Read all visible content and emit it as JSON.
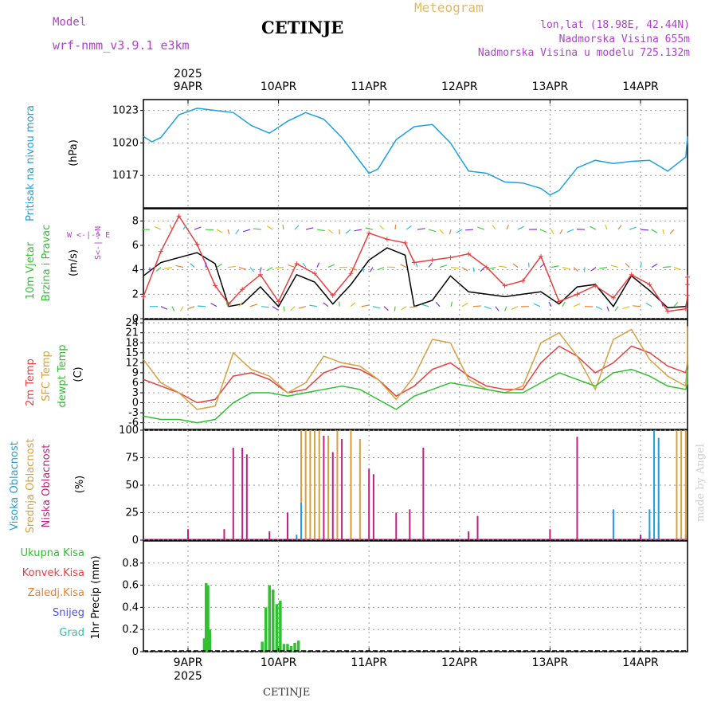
{
  "header": {
    "model_label": "Model",
    "model_name": "wrf-nmm_v3.9.1 e3km",
    "station": "CETINJE",
    "title": "Meteogram",
    "lonlat": "lon,lat (18.98E, 42.44N)",
    "altitude": "Nadmorska Visina 655m",
    "model_altitude": "Nadmorska Visina u modelu 725.132m",
    "footer": "CETINJE",
    "signature": "made by Angel"
  },
  "colors": {
    "pressure": "#1ea0e0",
    "wind_speed": "#000000",
    "wind_gust": "#e84040",
    "temp2m": "#e84040",
    "sfc_temp": "#d8a040",
    "dewpt": "#30c030",
    "high_cloud": "#1ea0e0",
    "mid_cloud": "#d8a040",
    "low_cloud": "#c02080",
    "total_precip": "#30c030",
    "conv_precip": "#e84040",
    "grid": "#999999"
  },
  "chart_data": [
    {
      "type": "line",
      "panel": "pressure",
      "title": "Pritisak na nivou mora",
      "ylabel": "(hPa)",
      "ylim": [
        1014,
        1024
      ],
      "yticks": [
        1017,
        1020,
        1023
      ],
      "x_top_labels": [
        "9APR",
        "10APR",
        "11APR",
        "12APR",
        "13APR",
        "14APR"
      ],
      "year_label": "2025",
      "series": [
        {
          "name": "MSLP",
          "x": [
            0,
            0.1,
            0.2,
            0.4,
            0.6,
            0.8,
            1.0,
            1.2,
            1.4,
            1.6,
            1.8,
            2.0,
            2.2,
            2.4,
            2.5,
            2.6,
            2.8,
            3.0,
            3.2,
            3.4,
            3.6,
            3.8,
            4.0,
            4.2,
            4.4,
            4.5,
            4.6,
            4.8,
            5.0,
            5.2,
            5.4,
            5.6,
            5.8,
            6.0,
            6.2,
            6.5
          ],
          "values": [
            1020.6,
            1020.1,
            1020.5,
            1022.6,
            1023.2,
            1023.0,
            1022.8,
            1021.6,
            1020.9,
            1022.0,
            1022.8,
            1022.2,
            1020.5,
            1018.3,
            1017.2,
            1017.6,
            1020.3,
            1021.5,
            1021.7,
            1020.0,
            1017.4,
            1017.2,
            1016.4,
            1016.3,
            1015.8,
            1015.2,
            1015.6,
            1017.7,
            1018.4,
            1018.1,
            1018.3,
            1018.4,
            1017.4,
            1018.7,
            1020.6,
            1020.0
          ]
        }
      ]
    },
    {
      "type": "line",
      "panel": "wind",
      "title": "10m Vjetar Brzina i Pravac",
      "ylabel": "(m/s)",
      "ylim": [
        0,
        9
      ],
      "yticks": [
        0,
        2,
        4,
        6,
        8
      ],
      "compass_label": "W <-|-> E",
      "series": [
        {
          "name": "Brzina",
          "x": [
            0,
            0.2,
            0.4,
            0.6,
            0.8,
            0.95,
            1.1,
            1.3,
            1.5,
            1.7,
            1.9,
            2.1,
            2.3,
            2.5,
            2.7,
            2.9,
            3.0,
            3.2,
            3.4,
            3.6,
            3.8,
            4.0,
            4.2,
            4.4,
            4.6,
            4.8,
            5.0,
            5.2,
            5.4,
            5.6,
            5.8,
            6.0,
            6.2,
            6.4,
            6.5
          ],
          "values": [
            3.5,
            4.6,
            5.0,
            5.4,
            4.5,
            1.0,
            1.2,
            2.6,
            1.0,
            3.6,
            3.0,
            1.2,
            2.8,
            4.8,
            5.8,
            5.2,
            1.0,
            1.5,
            3.5,
            2.2,
            2.0,
            1.8,
            2.0,
            2.2,
            1.2,
            2.6,
            2.8,
            1.0,
            3.5,
            2.3,
            0.9,
            1.0,
            1.6,
            2.5,
            3.2
          ]
        },
        {
          "name": "Udari",
          "x": [
            0,
            0.2,
            0.4,
            0.6,
            0.8,
            0.95,
            1.1,
            1.3,
            1.5,
            1.7,
            1.9,
            2.1,
            2.3,
            2.5,
            2.7,
            2.9,
            3.0,
            3.2,
            3.4,
            3.6,
            3.8,
            4.0,
            4.2,
            4.4,
            4.6,
            4.8,
            5.0,
            5.2,
            5.4,
            5.6,
            5.8,
            6.0,
            6.2,
            6.4,
            6.5
          ],
          "values": [
            1.8,
            5.5,
            8.4,
            6.1,
            2.7,
            1.2,
            2.4,
            3.6,
            1.4,
            4.5,
            3.7,
            1.9,
            3.7,
            7.0,
            6.5,
            6.2,
            4.6,
            4.8,
            5.0,
            5.3,
            4.2,
            2.7,
            3.1,
            5.1,
            1.4,
            2.0,
            2.7,
            1.7,
            3.6,
            2.8,
            0.6,
            0.8,
            1.9,
            2.8,
            3.4
          ]
        }
      ]
    },
    {
      "type": "line",
      "panel": "temperature",
      "title": "2m Temp / SFC Temp / dewpt Temp",
      "ylabel": "(C)",
      "ylim": [
        -8,
        25
      ],
      "yticks": [
        -6,
        -3,
        0,
        3,
        6,
        9,
        12,
        15,
        18,
        21,
        24
      ],
      "series": [
        {
          "name": "2m Temp",
          "x": [
            0,
            0.2,
            0.4,
            0.6,
            0.8,
            1.0,
            1.2,
            1.4,
            1.6,
            1.8,
            2.0,
            2.2,
            2.4,
            2.6,
            2.8,
            3.0,
            3.2,
            3.4,
            3.6,
            3.8,
            4.0,
            4.2,
            4.4,
            4.6,
            4.8,
            5.0,
            5.2,
            5.4,
            5.6,
            5.8,
            6.0,
            6.2,
            6.4,
            6.5
          ],
          "values": [
            7,
            5,
            3,
            0,
            1,
            8,
            9,
            7,
            3,
            4,
            9,
            11,
            10,
            7,
            2,
            5,
            10,
            12,
            8,
            5,
            4,
            4,
            12,
            17,
            14,
            9,
            12,
            17,
            15,
            11,
            9,
            12,
            16,
            17
          ]
        },
        {
          "name": "SFC Temp",
          "x": [
            0,
            0.2,
            0.4,
            0.6,
            0.8,
            1.0,
            1.2,
            1.4,
            1.6,
            1.8,
            2.0,
            2.2,
            2.4,
            2.6,
            2.8,
            3.0,
            3.2,
            3.4,
            3.6,
            3.8,
            4.0,
            4.2,
            4.4,
            4.6,
            4.8,
            5.0,
            5.2,
            5.4,
            5.6,
            5.8,
            6.0,
            6.2,
            6.4,
            6.5
          ],
          "values": [
            13,
            6,
            3,
            -2,
            -1,
            15,
            10,
            8,
            3,
            6,
            14,
            12,
            11,
            7,
            1,
            8,
            19,
            18,
            7,
            4,
            3,
            5,
            18,
            21,
            14,
            4,
            19,
            22,
            13,
            8,
            5,
            14,
            23,
            23
          ]
        },
        {
          "name": "dewpt Temp",
          "x": [
            0,
            0.2,
            0.4,
            0.6,
            0.8,
            1.0,
            1.2,
            1.4,
            1.6,
            1.8,
            2.0,
            2.2,
            2.4,
            2.6,
            2.8,
            3.0,
            3.2,
            3.4,
            3.6,
            3.8,
            4.0,
            4.2,
            4.4,
            4.6,
            4.8,
            5.0,
            5.2,
            5.4,
            5.6,
            5.8,
            6.0,
            6.2,
            6.4,
            6.5
          ],
          "values": [
            -4,
            -5,
            -5,
            -6,
            -5,
            0,
            3,
            3,
            2,
            3,
            4,
            5,
            4,
            1,
            -2,
            2,
            4,
            6,
            5,
            4,
            3,
            3,
            6,
            9,
            7,
            5,
            9,
            10,
            8,
            5,
            4,
            6,
            9,
            10
          ]
        }
      ]
    },
    {
      "type": "bar",
      "panel": "cloud",
      "title": "Visoka / Srednja / Niska Oblacnost",
      "ylabel": "(%)",
      "ylim": [
        0,
        100
      ],
      "yticks": [
        0,
        25,
        50,
        75,
        100
      ],
      "series": [
        {
          "name": "Niska Oblacnost",
          "x": [
            0.5,
            0.9,
            1.0,
            1.1,
            1.15,
            1.4,
            1.6,
            2.0,
            2.1,
            2.2,
            2.3,
            2.5,
            2.55,
            2.8,
            2.95,
            3.1,
            3.6,
            3.7,
            4.5,
            4.8,
            5.5,
            5.6,
            6.0
          ],
          "values": [
            10,
            10,
            84,
            84,
            78,
            8,
            25,
            95,
            80,
            92,
            90,
            65,
            60,
            25,
            28,
            84,
            8,
            22,
            10,
            94,
            5,
            8,
            5
          ]
        },
        {
          "name": "Srednja Oblacnost",
          "x": [
            1.75,
            1.8,
            1.85,
            1.9,
            1.95,
            2.05,
            2.15,
            2.3,
            2.4,
            5.7,
            5.9,
            5.95,
            6.0,
            6.1,
            6.2,
            6.3,
            6.4,
            6.45,
            6.5
          ],
          "values": [
            100,
            100,
            100,
            100,
            100,
            95,
            100,
            100,
            92,
            16,
            100,
            100,
            100,
            100,
            100,
            100,
            95,
            100,
            100
          ]
        },
        {
          "name": "Visoka Oblacnost",
          "x": [
            1.7,
            1.75,
            5.2,
            5.6,
            5.65,
            5.7,
            6.2,
            6.25
          ],
          "values": [
            5,
            34,
            28,
            28,
            100,
            93,
            28,
            66
          ]
        }
      ]
    },
    {
      "type": "bar",
      "panel": "precip",
      "title": "1hr Precip",
      "ylabel": "1hr Precip (mm)",
      "ylim": [
        0,
        1.0
      ],
      "yticks": [
        0,
        0.2,
        0.4,
        0.6,
        0.8
      ],
      "x_bottom_labels": [
        "9APR",
        "10APR",
        "11APR",
        "12APR",
        "13APR",
        "14APR"
      ],
      "year_label": "2025",
      "series": [
        {
          "name": "Ukupna Kisa",
          "x": [
            0.68,
            0.7,
            0.72,
            0.74,
            1.32,
            1.36,
            1.4,
            1.44,
            1.48,
            1.52,
            1.56,
            1.6,
            1.64,
            1.68,
            1.72,
            1.76,
            1.8
          ],
          "values": [
            0.12,
            0.62,
            0.6,
            0.2,
            0.09,
            0.4,
            0.6,
            0.56,
            0.43,
            0.46,
            0.07,
            0.07,
            0.05,
            0.08,
            0.1,
            0.01,
            0.01
          ]
        }
      ]
    }
  ],
  "legends": {
    "pressure_label": "Pritisak na nivou mora",
    "pressure_unit": "(hPa)",
    "wind_label1": "10m Vjetar",
    "wind_label2": "Brzina i Pravac",
    "wind_unit": "(m/s)",
    "wind_compass_we": "W <-|-> E",
    "wind_compass_ns": "S<-|->N",
    "temp_label1": "2m Temp",
    "temp_label2": "SFC Temp",
    "temp_label3": "dewpt Temp",
    "temp_unit": "(C)",
    "cloud_label1": "Visoka Oblacnost",
    "cloud_label2": "Srednja Oblacnost",
    "cloud_label3": "Niska Oblacnost",
    "cloud_unit": "(%)",
    "precip_total": "Ukupna Kisa",
    "precip_conv": "Konvek.Kisa",
    "precip_frozen": "Zaledj.Kisa",
    "precip_snow": "Snijeg",
    "precip_hail": "Grad",
    "precip_unit": "1hr Precip (mm)"
  }
}
